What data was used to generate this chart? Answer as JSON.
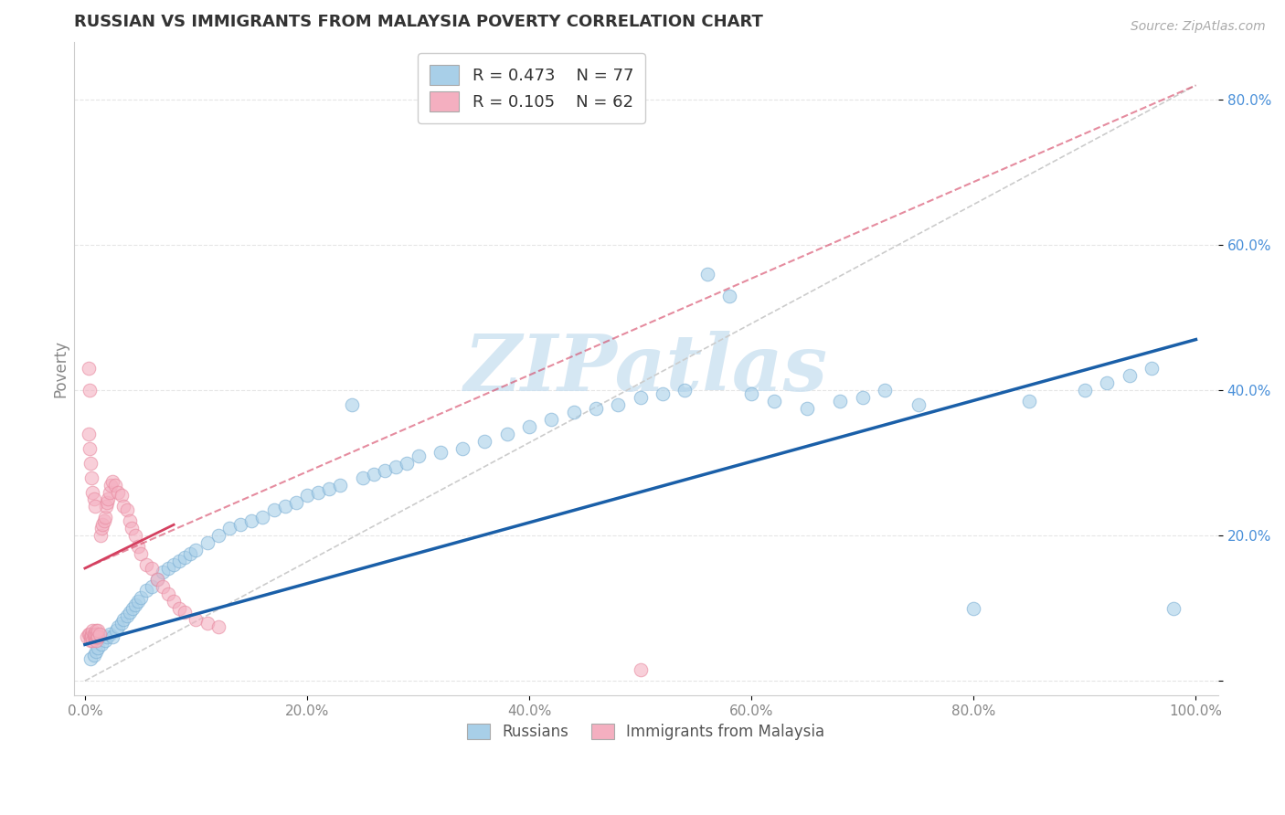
{
  "title": "RUSSIAN VS IMMIGRANTS FROM MALAYSIA POVERTY CORRELATION CHART",
  "source_text": "Source: ZipAtlas.com",
  "ylabel": "Poverty",
  "xlim": [
    -0.01,
    1.02
  ],
  "ylim": [
    -0.02,
    0.88
  ],
  "xticks": [
    0.0,
    0.2,
    0.4,
    0.6,
    0.8,
    1.0
  ],
  "xticklabels": [
    "0.0%",
    "20.0%",
    "40.0%",
    "60.0%",
    "80.0%",
    "100.0%"
  ],
  "yticks": [
    0.0,
    0.2,
    0.4,
    0.6,
    0.8
  ],
  "yticklabels": [
    "",
    "20.0%",
    "40.0%",
    "60.0%",
    "80.0%"
  ],
  "legend_r1": "R = 0.473",
  "legend_n1": "N = 77",
  "legend_r2": "R = 0.105",
  "legend_n2": "N = 62",
  "blue_color": "#a8cfe8",
  "blue_edge": "#7bafd4",
  "pink_color": "#f4afc0",
  "pink_edge": "#e88aa0",
  "trend_blue": "#1a5fa8",
  "trend_pink": "#d44060",
  "ref_line_color": "#cccccc",
  "watermark": "ZIPatlas",
  "watermark_color": "#c8dff0",
  "grid_color": "#e5e5e5",
  "tick_color_y": "#4a90d9",
  "tick_color_x": "#888888",
  "title_color": "#333333",
  "ylabel_color": "#888888",
  "source_color": "#aaaaaa",
  "blue_scatter_x": [
    0.005,
    0.008,
    0.01,
    0.012,
    0.015,
    0.018,
    0.02,
    0.022,
    0.025,
    0.028,
    0.03,
    0.033,
    0.035,
    0.038,
    0.04,
    0.043,
    0.045,
    0.048,
    0.05,
    0.055,
    0.06,
    0.065,
    0.07,
    0.075,
    0.08,
    0.085,
    0.09,
    0.095,
    0.1,
    0.11,
    0.12,
    0.13,
    0.14,
    0.15,
    0.16,
    0.17,
    0.18,
    0.19,
    0.2,
    0.21,
    0.22,
    0.23,
    0.24,
    0.25,
    0.26,
    0.27,
    0.28,
    0.29,
    0.3,
    0.32,
    0.34,
    0.36,
    0.38,
    0.4,
    0.42,
    0.44,
    0.46,
    0.48,
    0.5,
    0.52,
    0.54,
    0.56,
    0.58,
    0.6,
    0.62,
    0.65,
    0.68,
    0.7,
    0.72,
    0.75,
    0.8,
    0.85,
    0.9,
    0.92,
    0.94,
    0.96,
    0.98
  ],
  "blue_scatter_y": [
    0.03,
    0.035,
    0.04,
    0.045,
    0.05,
    0.055,
    0.06,
    0.065,
    0.06,
    0.07,
    0.075,
    0.08,
    0.085,
    0.09,
    0.095,
    0.1,
    0.105,
    0.11,
    0.115,
    0.125,
    0.13,
    0.14,
    0.15,
    0.155,
    0.16,
    0.165,
    0.17,
    0.175,
    0.18,
    0.19,
    0.2,
    0.21,
    0.215,
    0.22,
    0.225,
    0.235,
    0.24,
    0.245,
    0.255,
    0.26,
    0.265,
    0.27,
    0.38,
    0.28,
    0.285,
    0.29,
    0.295,
    0.3,
    0.31,
    0.315,
    0.32,
    0.33,
    0.34,
    0.35,
    0.36,
    0.37,
    0.375,
    0.38,
    0.39,
    0.395,
    0.4,
    0.56,
    0.53,
    0.395,
    0.385,
    0.375,
    0.385,
    0.39,
    0.4,
    0.38,
    0.1,
    0.385,
    0.4,
    0.41,
    0.42,
    0.43,
    0.1
  ],
  "pink_scatter_x": [
    0.002,
    0.003,
    0.004,
    0.005,
    0.005,
    0.006,
    0.006,
    0.007,
    0.007,
    0.008,
    0.008,
    0.009,
    0.009,
    0.01,
    0.01,
    0.011,
    0.011,
    0.012,
    0.012,
    0.013,
    0.014,
    0.015,
    0.016,
    0.017,
    0.018,
    0.019,
    0.02,
    0.021,
    0.022,
    0.023,
    0.025,
    0.027,
    0.03,
    0.033,
    0.035,
    0.038,
    0.04,
    0.042,
    0.045,
    0.048,
    0.05,
    0.055,
    0.06,
    0.065,
    0.07,
    0.075,
    0.08,
    0.085,
    0.09,
    0.1,
    0.11,
    0.12,
    0.003,
    0.004,
    0.005,
    0.006,
    0.007,
    0.008,
    0.009,
    0.003,
    0.004,
    0.5
  ],
  "pink_scatter_y": [
    0.06,
    0.065,
    0.065,
    0.06,
    0.055,
    0.065,
    0.06,
    0.055,
    0.07,
    0.06,
    0.065,
    0.06,
    0.065,
    0.055,
    0.07,
    0.06,
    0.065,
    0.06,
    0.07,
    0.065,
    0.2,
    0.21,
    0.215,
    0.22,
    0.225,
    0.24,
    0.245,
    0.25,
    0.26,
    0.27,
    0.275,
    0.27,
    0.26,
    0.255,
    0.24,
    0.235,
    0.22,
    0.21,
    0.2,
    0.185,
    0.175,
    0.16,
    0.155,
    0.14,
    0.13,
    0.12,
    0.11,
    0.1,
    0.095,
    0.085,
    0.08,
    0.075,
    0.34,
    0.32,
    0.3,
    0.28,
    0.26,
    0.25,
    0.24,
    0.43,
    0.4,
    0.015
  ],
  "blue_trend_x0": 0.0,
  "blue_trend_x1": 1.0,
  "blue_trend_y0": 0.05,
  "blue_trend_y1": 0.47,
  "pink_trend_x0": 0.0,
  "pink_trend_x1": 1.0,
  "pink_trend_y0": 0.155,
  "pink_trend_y1": 0.82,
  "ref_line_x0": 0.0,
  "ref_line_x1": 1.0,
  "ref_line_y0": 0.0,
  "ref_line_y1": 0.82
}
